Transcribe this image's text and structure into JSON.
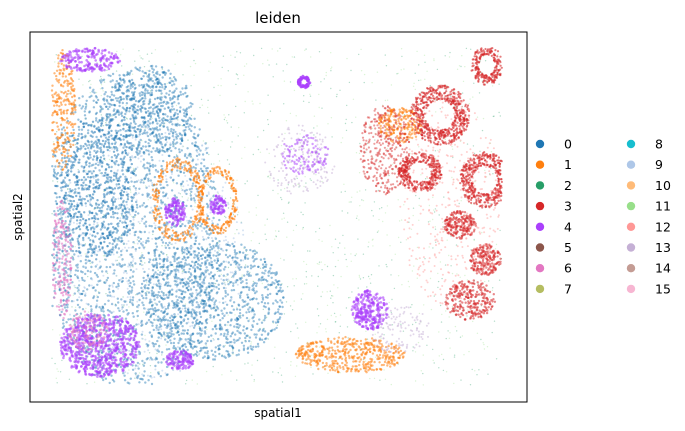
{
  "chart_data": {
    "type": "scatter",
    "title": "leiden",
    "xlabel": "spatial1",
    "ylabel": "spatial2",
    "grid": false,
    "x_ticks": [],
    "y_ticks": [],
    "legend": {
      "placement": "right-outside",
      "columns": 2,
      "entries": [
        {
          "label": "0",
          "color": "#1f77b4"
        },
        {
          "label": "1",
          "color": "#ff7f0e"
        },
        {
          "label": "2",
          "color": "#279e68"
        },
        {
          "label": "3",
          "color": "#d62728"
        },
        {
          "label": "4",
          "color": "#aa40fc"
        },
        {
          "label": "5",
          "color": "#8c564b"
        },
        {
          "label": "6",
          "color": "#e377c2"
        },
        {
          "label": "7",
          "color": "#b5bd61"
        },
        {
          "label": "8",
          "color": "#17becf"
        },
        {
          "label": "9",
          "color": "#aec7e8"
        },
        {
          "label": "10",
          "color": "#ffbb78"
        },
        {
          "label": "11",
          "color": "#98df8a"
        },
        {
          "label": "12",
          "color": "#ff9896"
        },
        {
          "label": "13",
          "color": "#c5b0d5"
        },
        {
          "label": "14",
          "color": "#c49c94"
        },
        {
          "label": "15",
          "color": "#f7b6d2"
        }
      ]
    },
    "clusters_shown": [
      {
        "label": "0",
        "description": "large dense region, left and centre-left"
      },
      {
        "label": "3",
        "description": "dense gland-like rings, right side"
      },
      {
        "label": "4",
        "description": "round blobs, lower-left and centre-bottom"
      },
      {
        "label": "1",
        "description": "borders around glands, bottom-centre band"
      },
      {
        "label": "2",
        "description": "sparse background scatter"
      }
    ]
  }
}
